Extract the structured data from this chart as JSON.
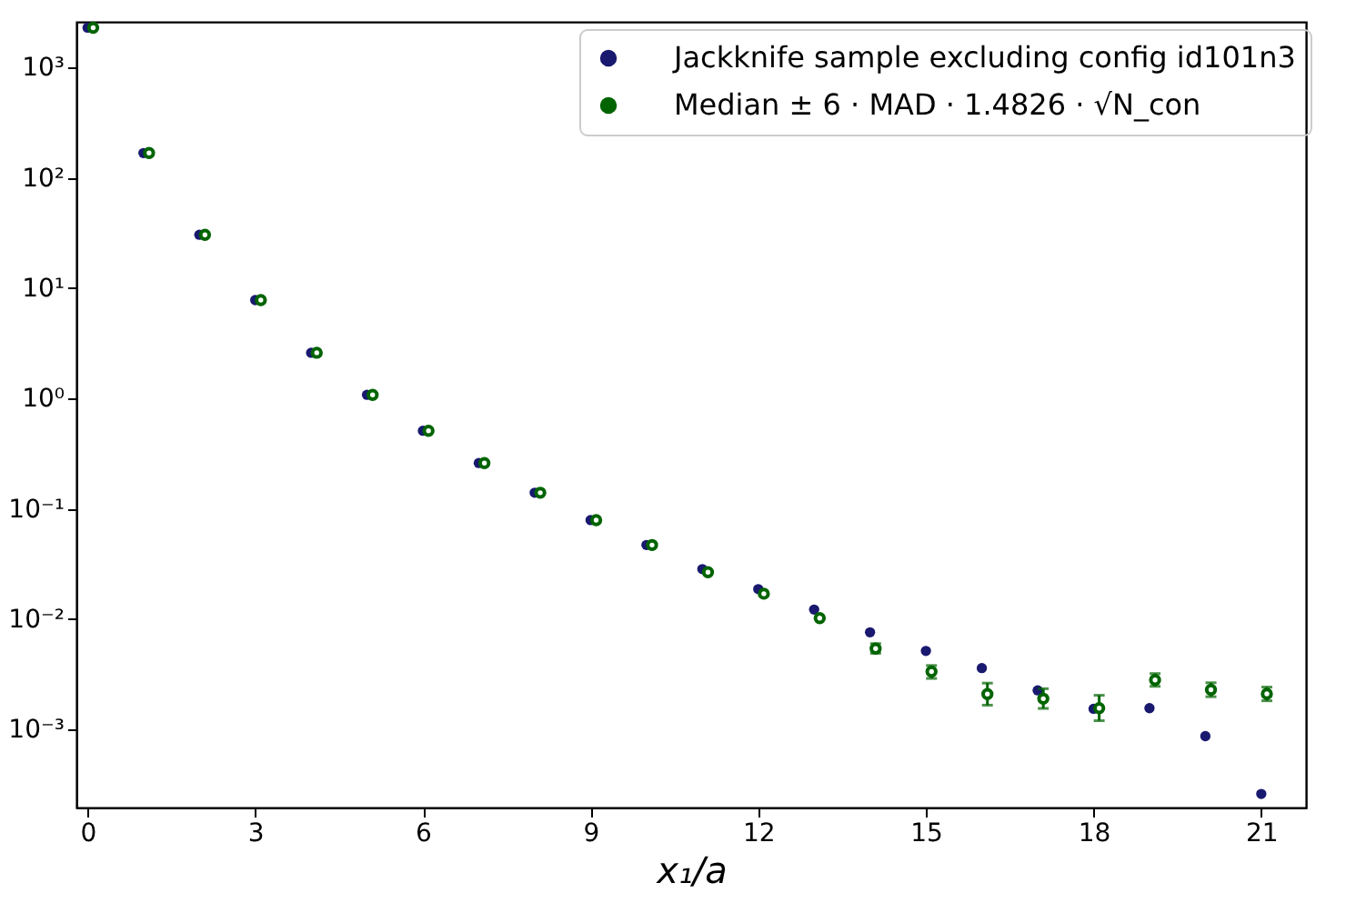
{
  "chart_data": {
    "type": "scatter",
    "xlabel": "x₁/a",
    "log": "y",
    "grid": false,
    "legend": "top right",
    "xlim": [
      -0.2,
      21.8
    ],
    "xticks": [
      0,
      3,
      6,
      9,
      12,
      15,
      18,
      21
    ],
    "ylim": [
      0.000196,
      2600
    ],
    "yticks": [
      {
        "value": 0.001,
        "label": "10⁻³"
      },
      {
        "value": 0.01,
        "label": "10⁻²"
      },
      {
        "value": 0.1,
        "label": "10⁻¹"
      },
      {
        "value": 1,
        "label": "10⁰"
      },
      {
        "value": 10,
        "label": "10¹"
      },
      {
        "value": 100,
        "label": "10²"
      },
      {
        "value": 1000,
        "label": "10³"
      }
    ],
    "series": [
      {
        "name": "Jackknife sample excluding config id101n3",
        "color": "#191970",
        "marker": "circle",
        "x": [
          0,
          1,
          2,
          3,
          4,
          5,
          6,
          7,
          8,
          9,
          10,
          11,
          12,
          13,
          14,
          15,
          16,
          17,
          18,
          19,
          20,
          21
        ],
        "values": [
          2300,
          168,
          30.5,
          7.8,
          2.6,
          1.08,
          0.51,
          0.26,
          0.14,
          0.079,
          0.047,
          0.0284,
          0.0187,
          0.0122,
          0.0076,
          0.00515,
          0.0036,
          0.00226,
          0.00154,
          0.00156,
          0.00087,
          0.00026
        ]
      },
      {
        "name": "Median ± 6 · MAD · 1.4826 · √N_con",
        "color": "#006400",
        "marker": "circle",
        "x": [
          0.1,
          1.1,
          2.1,
          3.1,
          4.1,
          5.1,
          6.1,
          7.1,
          8.1,
          9.1,
          10.1,
          11.1,
          12.1,
          13.1,
          14.1,
          15.1,
          16.1,
          17.1,
          18.1,
          19.1,
          20.1,
          21.1
        ],
        "values": [
          2300,
          168,
          30.5,
          7.8,
          2.6,
          1.08,
          0.51,
          0.26,
          0.14,
          0.079,
          0.047,
          0.0266,
          0.017,
          0.0102,
          0.0054,
          0.00335,
          0.00209,
          0.0019,
          0.00156,
          0.00281,
          0.00229,
          0.0021
        ],
        "errors": [
          null,
          null,
          null,
          null,
          null,
          null,
          null,
          null,
          null,
          null,
          null,
          null,
          null,
          null,
          [
            0.0049,
            0.006
          ],
          [
            0.0029,
            0.0038
          ],
          [
            0.00166,
            0.00263
          ],
          [
            0.00155,
            0.00234
          ],
          [
            0.0012,
            0.00204
          ],
          [
            0.00246,
            0.00321
          ],
          [
            0.00198,
            0.00265
          ],
          [
            0.00182,
            0.00242
          ]
        ]
      }
    ]
  }
}
